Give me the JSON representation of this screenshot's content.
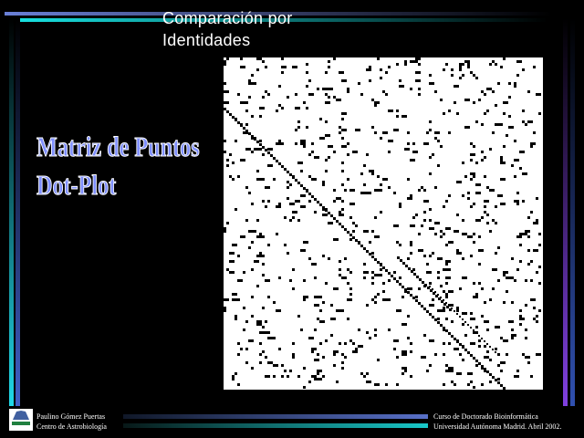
{
  "slide": {
    "title_line1": "Comparación por",
    "title_line2": "Identidades",
    "heading_line1": "Matriz de Puntos",
    "heading_line2": "Dot-Plot"
  },
  "footer": {
    "author": "Paulino Gómez Puertas",
    "institution": "Centro de Astrobiología",
    "course": "Curso de Doctorado Bioinformática",
    "university_date": "Universidad Autónoma Madrid. Abril 2002."
  },
  "colors": {
    "background": "#000000",
    "accent_blue": "#6070d0",
    "accent_cyan": "#10d0d0",
    "heading": "#7f8fff"
  },
  "dot_plot": {
    "description_visible": false
  }
}
